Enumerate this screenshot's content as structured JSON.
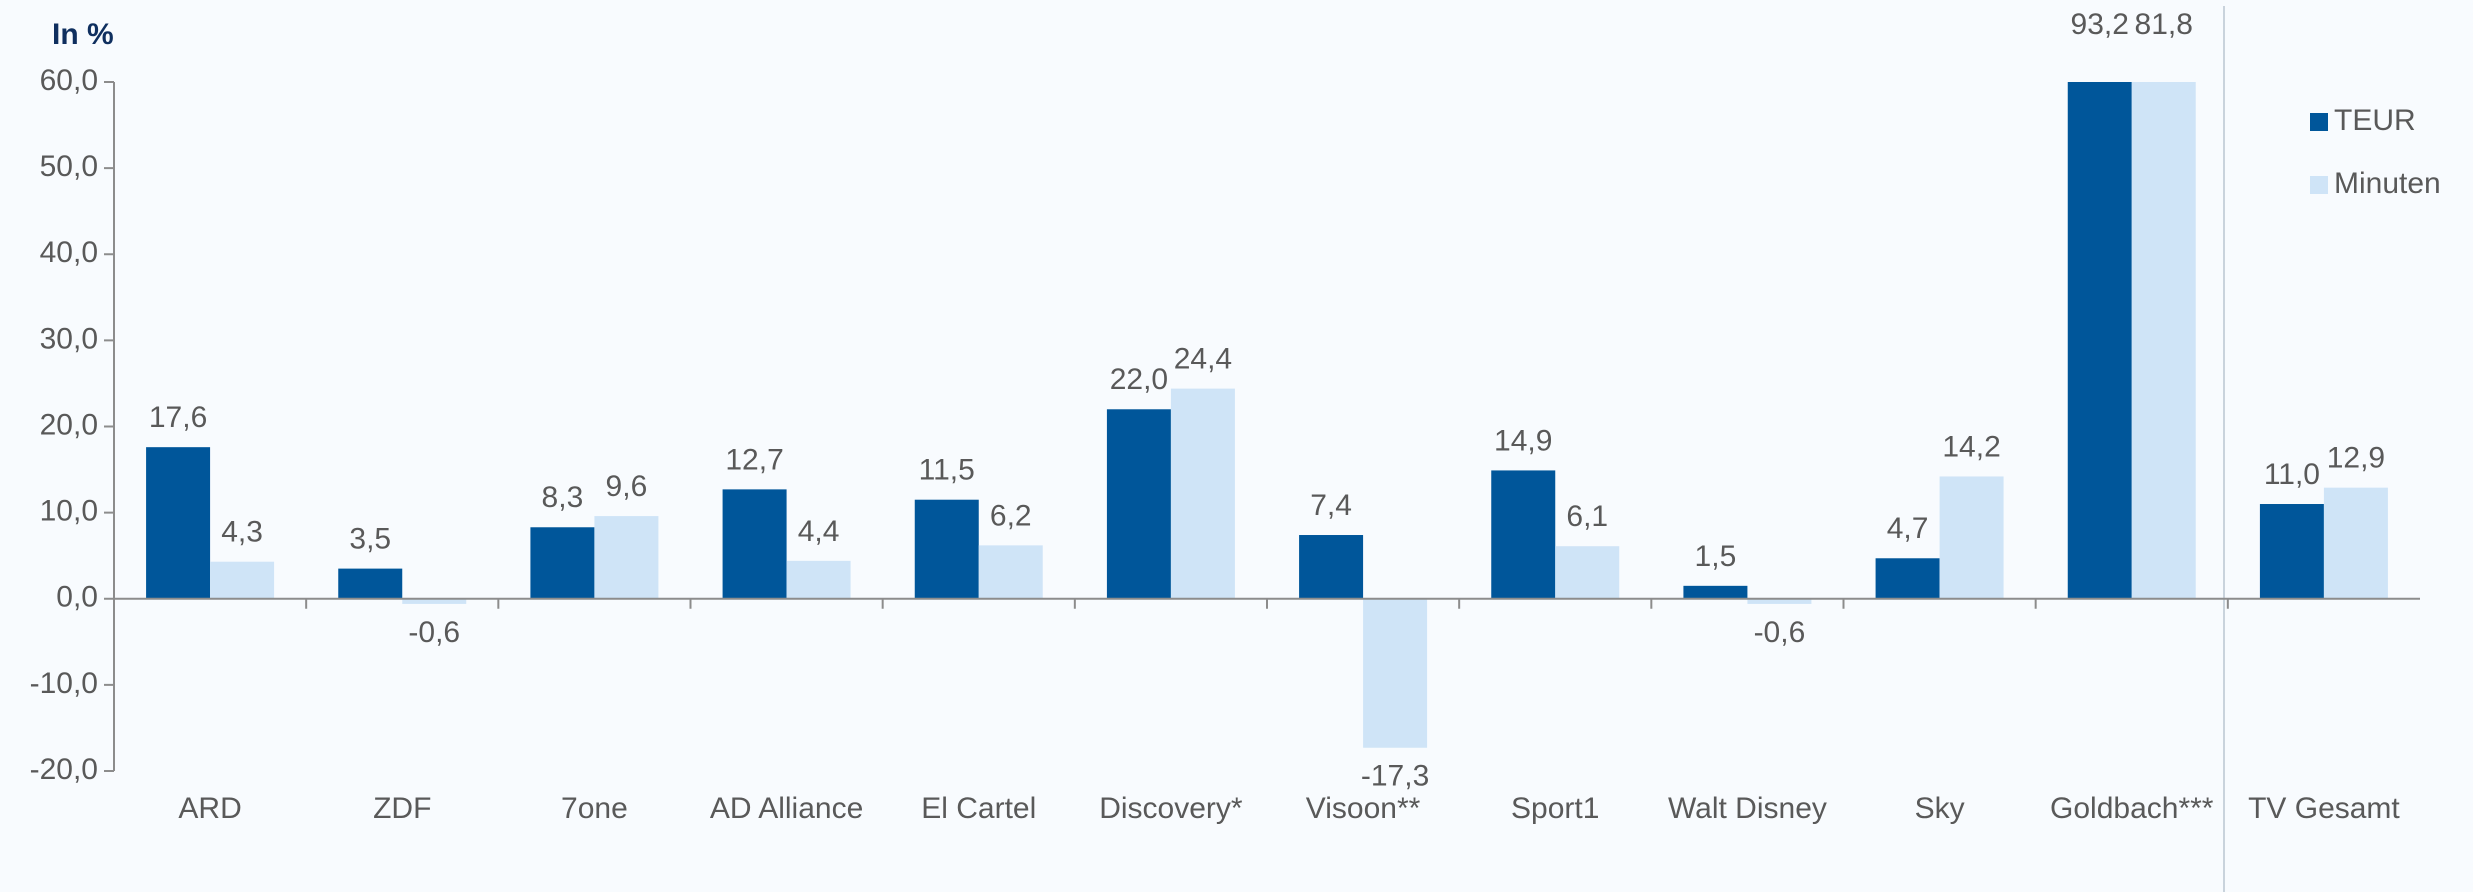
{
  "chart_data": {
    "type": "bar",
    "title": "In %",
    "categories": [
      "ARD",
      "ZDF",
      "7one",
      "AD Alliance",
      "El Cartel",
      "Discovery*",
      "Visoon**",
      "Sport1",
      "Walt Disney",
      "Sky",
      "Goldbach***",
      "TV Gesamt"
    ],
    "series": [
      {
        "name": "TEUR",
        "color": "#00569a",
        "values": [
          17.6,
          3.5,
          8.3,
          12.7,
          11.5,
          22.0,
          7.4,
          14.9,
          1.5,
          4.7,
          93.2,
          11.0
        ],
        "value_labels": [
          "17,6",
          "3,5",
          "8,3",
          "12,7",
          "11,5",
          "22,0",
          "7,4",
          "14,9",
          "1,5",
          "4,7",
          "93,2",
          "11,0"
        ]
      },
      {
        "name": "Minuten",
        "color": "#cfe4f7",
        "values": [
          4.3,
          -0.6,
          9.6,
          4.4,
          6.2,
          24.4,
          -17.3,
          6.1,
          -0.6,
          14.2,
          81.8,
          12.9
        ],
        "value_labels": [
          "4,3",
          "-0,6",
          "9,6",
          "4,4",
          "6,2",
          "24,4",
          "-17,3",
          "6,1",
          "-0,6",
          "14,2",
          "81,8",
          "12,9"
        ]
      }
    ],
    "ylim": [
      -20,
      60
    ],
    "yticks": [
      {
        "value": -20,
        "label": "-20,0"
      },
      {
        "value": -10,
        "label": "-10,0"
      },
      {
        "value": 0,
        "label": "0,0"
      },
      {
        "value": 10,
        "label": "10,0"
      },
      {
        "value": 20,
        "label": "20,0"
      },
      {
        "value": 30,
        "label": "30,0"
      },
      {
        "value": 40,
        "label": "40,0"
      },
      {
        "value": 50,
        "label": "50,0"
      },
      {
        "value": 60,
        "label": "60,0"
      }
    ],
    "legend": "right"
  }
}
